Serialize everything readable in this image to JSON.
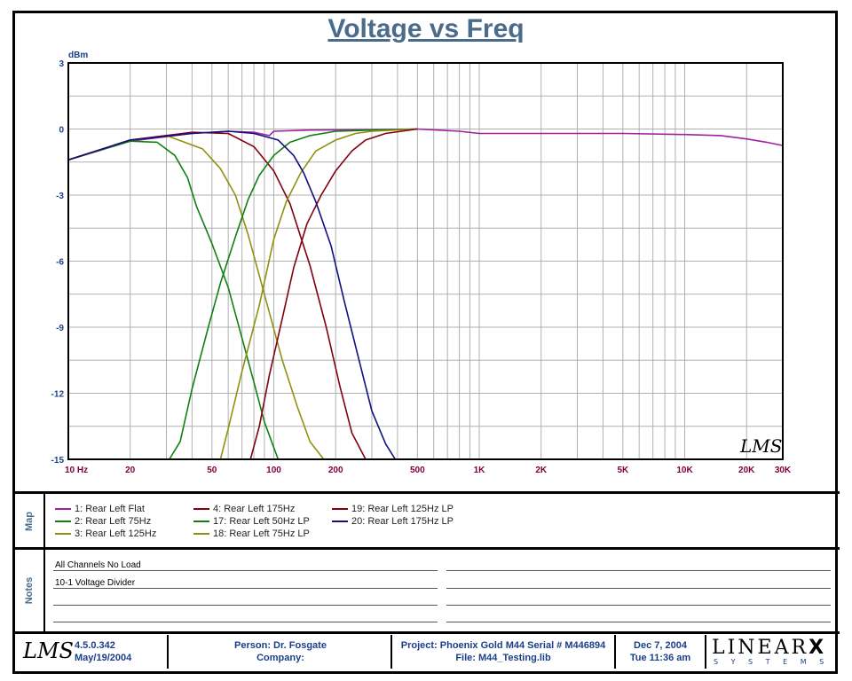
{
  "chart_data": {
    "type": "line",
    "title": "Voltage vs Freq",
    "ylabel": "dBm",
    "xscale": "log",
    "xlim": [
      10,
      30000
    ],
    "ylim": [
      -15,
      3
    ],
    "x_ticks": [
      10,
      20,
      50,
      100,
      200,
      500,
      1000,
      2000,
      5000,
      10000,
      20000,
      30000
    ],
    "x_tick_labels": [
      "10  Hz",
      "20",
      "50",
      "100",
      "200",
      "500",
      "1K",
      "2K",
      "5K",
      "10K",
      "20K",
      "30K"
    ],
    "y_ticks": [
      3,
      0,
      -3,
      -6,
      -9,
      -12,
      -15
    ],
    "y_tick_labels": [
      "3",
      "0",
      "-3",
      "-6",
      "-9",
      "-12",
      "-15"
    ],
    "grid": true,
    "series": [
      {
        "name": "1: Rear Left Flat",
        "color": "#a020a0",
        "x": [
          10,
          20,
          40,
          60,
          80,
          95,
          100,
          150,
          300,
          500,
          800,
          1000,
          5000,
          10000,
          15000,
          20000,
          25000,
          30000
        ],
        "y": [
          -1.4,
          -0.55,
          -0.2,
          -0.1,
          -0.15,
          -0.3,
          -0.1,
          -0.05,
          -0.03,
          0,
          -0.1,
          -0.2,
          -0.2,
          -0.25,
          -0.3,
          -0.45,
          -0.6,
          -0.75
        ]
      },
      {
        "name": "2: Rear Left 75Hz",
        "color": "#108010",
        "x": [
          10,
          15,
          20,
          27,
          33,
          38,
          42,
          50,
          60,
          70,
          80,
          90,
          105
        ],
        "y": [
          -1.4,
          -0.9,
          -0.55,
          -0.6,
          -1.2,
          -2.2,
          -3.5,
          -5.2,
          -7.2,
          -9.5,
          -11.5,
          -13.3,
          -15
        ]
      },
      {
        "name": "3: Rear Left 125Hz",
        "color": "#909010",
        "x": [
          10,
          20,
          30,
          45,
          55,
          65,
          75,
          90,
          110,
          130,
          150,
          175
        ],
        "y": [
          -1.4,
          -0.5,
          -0.3,
          -0.9,
          -1.8,
          -3.0,
          -4.8,
          -7.5,
          -10.5,
          -12.6,
          -14.2,
          -15
        ]
      },
      {
        "name": "4: Rear Left 175Hz",
        "color": "#800010",
        "x": [
          10,
          20,
          40,
          60,
          80,
          100,
          120,
          150,
          180,
          210,
          240,
          280
        ],
        "y": [
          -1.4,
          -0.5,
          -0.15,
          -0.2,
          -0.8,
          -1.9,
          -3.4,
          -6.2,
          -9.0,
          -11.7,
          -13.8,
          -15
        ]
      },
      {
        "name": "17: Rear Left 50Hz LP",
        "color": "#108010",
        "x": [
          31,
          35,
          40,
          48,
          55,
          65,
          75,
          85,
          100,
          120,
          150,
          200,
          300,
          500
        ],
        "y": [
          -15,
          -14.2,
          -11.8,
          -9.0,
          -7.0,
          -4.9,
          -3.2,
          -2.1,
          -1.2,
          -0.6,
          -0.3,
          -0.1,
          -0.05,
          0
        ]
      },
      {
        "name": "18: Rear Left 75Hz LP",
        "color": "#909010",
        "x": [
          55,
          60,
          70,
          85,
          100,
          115,
          135,
          160,
          200,
          250,
          300,
          500
        ],
        "y": [
          -15,
          -13.6,
          -11.0,
          -8.0,
          -5.0,
          -3.3,
          -2.0,
          -1.0,
          -0.5,
          -0.2,
          -0.1,
          0
        ]
      },
      {
        "name": "19: Rear Left 125Hz LP",
        "color": "#800010",
        "x": [
          77,
          85,
          95,
          110,
          125,
          145,
          170,
          200,
          240,
          280,
          350,
          500
        ],
        "y": [
          -15,
          -13.5,
          -11.2,
          -8.6,
          -6.3,
          -4.3,
          -3.0,
          -1.9,
          -1.0,
          -0.5,
          -0.2,
          0
        ]
      },
      {
        "name": "20: Rear Left 175Hz LP",
        "color": "#101080",
        "x": [
          10,
          20,
          40,
          60,
          80,
          105,
          125,
          140,
          160,
          190,
          220,
          260,
          300,
          350,
          390
        ],
        "y": [
          -1.4,
          -0.5,
          -0.2,
          -0.1,
          -0.2,
          -0.5,
          -1.2,
          -2.0,
          -3.3,
          -5.3,
          -7.8,
          -10.5,
          -12.8,
          -14.3,
          -15
        ]
      }
    ]
  },
  "watermark_text": "LMS",
  "map": {
    "label": "Map",
    "items": [
      {
        "label": "1: Rear Left Flat",
        "color": "#a020a0"
      },
      {
        "label": "2: Rear Left 75Hz",
        "color": "#108010"
      },
      {
        "label": "3: Rear Left 125Hz",
        "color": "#909010"
      },
      {
        "label": "4: Rear Left 175Hz",
        "color": "#800010"
      },
      {
        "label": "17: Rear Left 50Hz LP",
        "color": "#108010"
      },
      {
        "label": "18: Rear Left 75Hz LP",
        "color": "#909010"
      },
      {
        "label": "19: Rear Left 125Hz LP",
        "color": "#800010"
      },
      {
        "label": "20: Rear Left 175Hz LP",
        "color": "#101080"
      }
    ]
  },
  "notes": {
    "label": "Notes",
    "line1": "All Channels No Load",
    "line2": "10-1 Voltage Divider"
  },
  "footer": {
    "logo": "LMS",
    "version": "4.5.0.342",
    "version_date": "May/19/2004",
    "person": "Person: Dr. Fosgate",
    "company": "Company:",
    "project": "Project: Phoenix Gold M44 Serial # M446894",
    "file": "File: M44_Testing.lib",
    "date": "Dec  7, 2004",
    "time": "Tue 11:36 am",
    "brand_main": "LINEAR",
    "brand_x": "X",
    "brand_sub": "S Y S T E M S"
  }
}
